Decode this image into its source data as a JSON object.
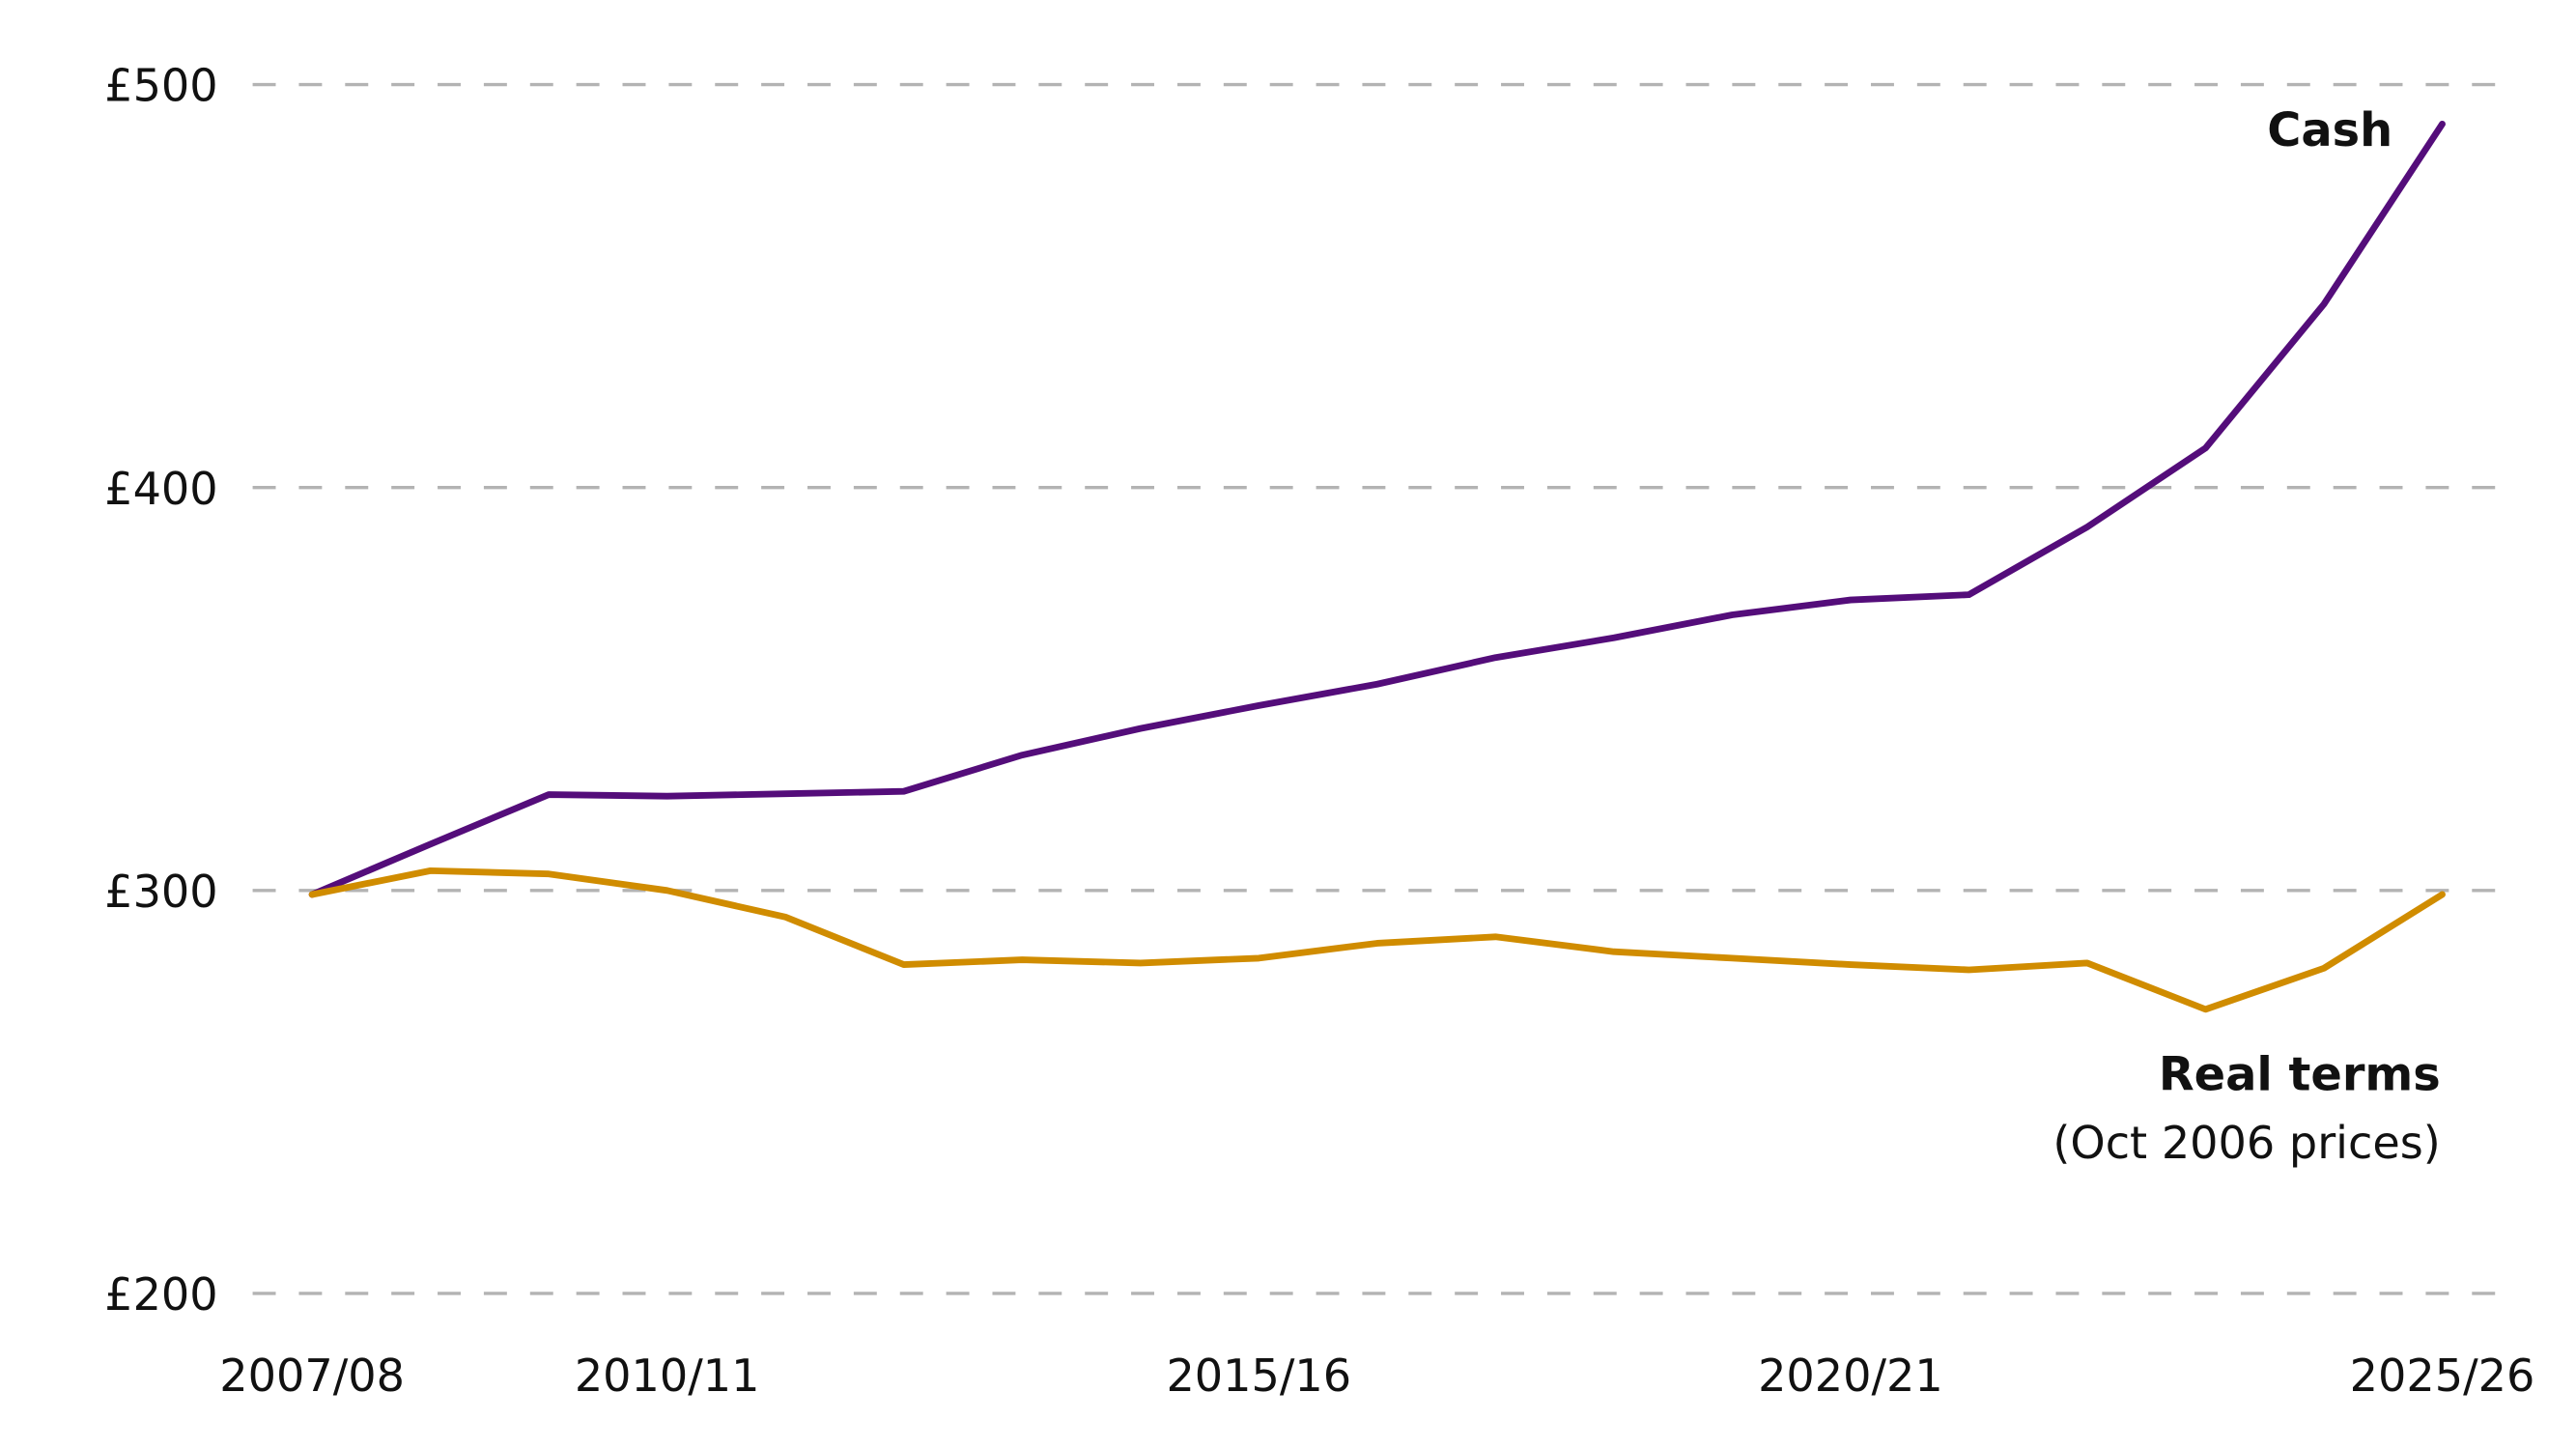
{
  "chart_data": {
    "type": "line",
    "title": "",
    "xlabel": "",
    "ylabel": "",
    "ylim": [
      200,
      500
    ],
    "y_ticks": [
      500,
      400,
      300,
      200
    ],
    "y_tick_labels": [
      "£500",
      "£400",
      "£300",
      "£200"
    ],
    "x_tick_labels": [
      "2007/08",
      "2010/11",
      "2015/16",
      "2020/21",
      "2025/26"
    ],
    "x": [
      "2007/08",
      "2008/09",
      "2009/10",
      "2010/11",
      "2011/12",
      "2012/13",
      "2013/14",
      "2014/15",
      "2015/16",
      "2016/17",
      "2017/18",
      "2018/19",
      "2019/20",
      "2020/21",
      "2021/22",
      "2022/23",
      "2023/24",
      "2024/25",
      "2025/26"
    ],
    "grid": "horizontal dashed",
    "series": [
      {
        "name": "Cash",
        "color": "#540d7a",
        "values": [
          299,
          311.5,
          323.8,
          323.4,
          324,
          324.6,
          333.6,
          340.2,
          345.9,
          351.2,
          357.8,
          362.7,
          368.4,
          372.1,
          373.4,
          390.2,
          409.8,
          445.5,
          490.2
        ]
      },
      {
        "name": "Real terms",
        "subtitle": "(Oct 2006 prices)",
        "color": "#d08c00",
        "values": [
          299,
          304.9,
          304.1,
          300,
          293.4,
          281.6,
          282.8,
          282,
          283.2,
          286.9,
          288.5,
          284.8,
          283.2,
          281.6,
          280.3,
          282,
          270.5,
          280.7,
          299
        ]
      }
    ]
  }
}
